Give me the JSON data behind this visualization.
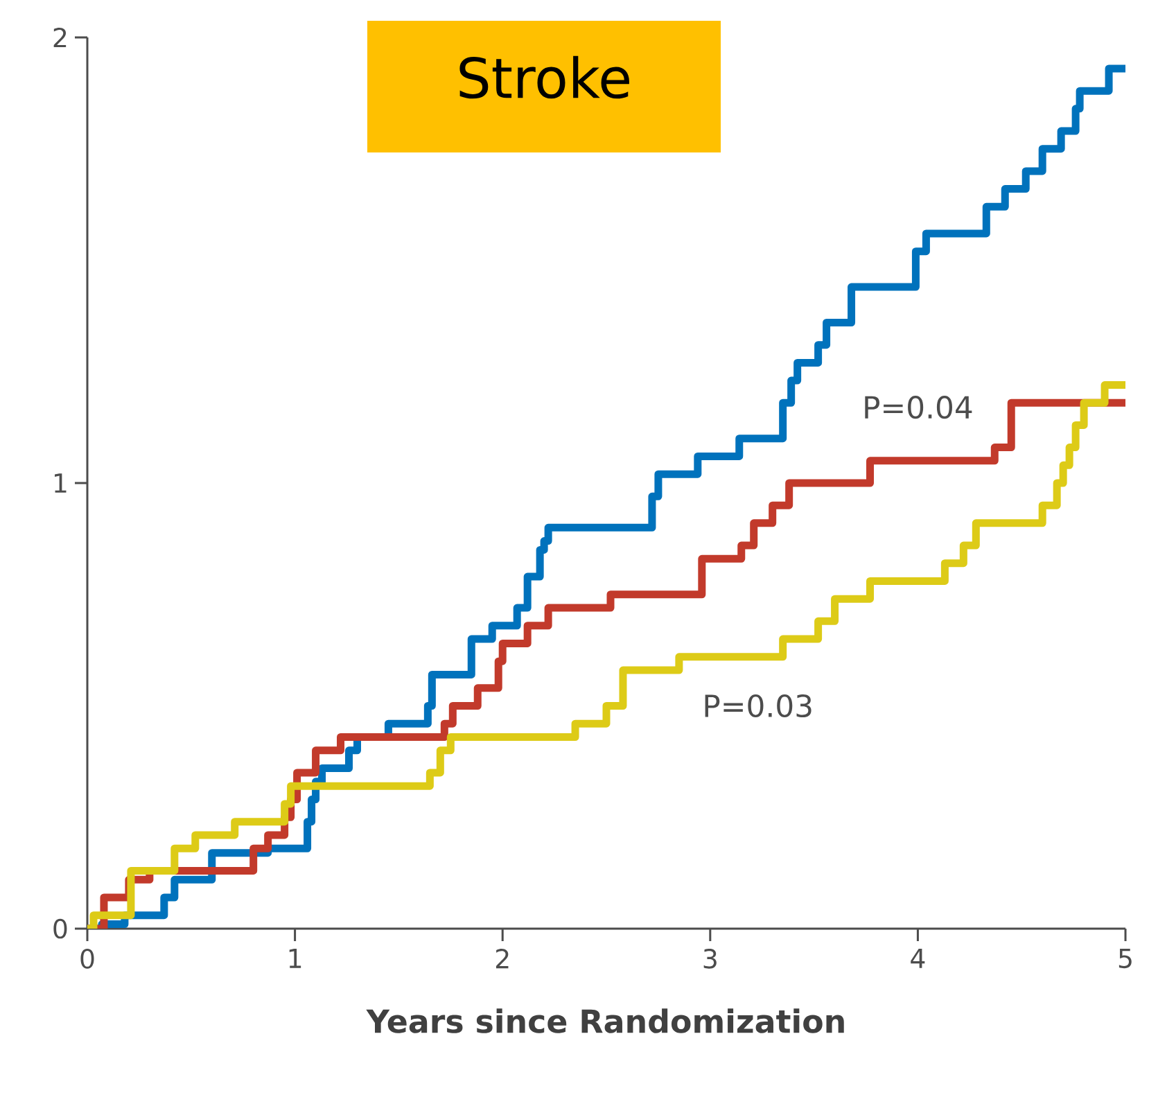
{
  "chart_data": {
    "type": "step",
    "title": "Stroke",
    "xlabel": "Years since Randomization",
    "xlim": [
      0,
      5
    ],
    "ylim": [
      0,
      2
    ],
    "xticks": [
      0,
      1,
      2,
      3,
      4,
      5
    ],
    "yticks": [
      0,
      1,
      2
    ],
    "line_style": "solid",
    "marker": "none",
    "series": [
      {
        "color": "#0072bc",
        "x": [
          0,
          0.07,
          0.18,
          0.37,
          0.42,
          0.6,
          0.87,
          1.06,
          1.08,
          1.1,
          1.13,
          1.26,
          1.3,
          1.45,
          1.64,
          1.66,
          1.85,
          1.95,
          2.07,
          2.12,
          2.18,
          2.2,
          2.22,
          2.72,
          2.75,
          2.94,
          3.14,
          3.35,
          3.39,
          3.42,
          3.52,
          3.56,
          3.68,
          3.99,
          4.04,
          4.33,
          4.42,
          4.52,
          4.6,
          4.69,
          4.76,
          4.78,
          4.92,
          5.0
        ],
        "values": [
          0,
          0.01,
          0.03,
          0.07,
          0.11,
          0.17,
          0.18,
          0.24,
          0.29,
          0.33,
          0.36,
          0.4,
          0.43,
          0.46,
          0.5,
          0.57,
          0.65,
          0.68,
          0.72,
          0.79,
          0.85,
          0.87,
          0.9,
          0.97,
          1.02,
          1.06,
          1.1,
          1.18,
          1.23,
          1.27,
          1.31,
          1.36,
          1.44,
          1.52,
          1.56,
          1.62,
          1.66,
          1.7,
          1.75,
          1.79,
          1.84,
          1.88,
          1.93,
          1.93
        ]
      },
      {
        "color": "#c23a2b",
        "x": [
          0,
          0.08,
          0.2,
          0.3,
          0.8,
          0.87,
          0.95,
          0.98,
          1.01,
          1.1,
          1.22,
          1.72,
          1.76,
          1.88,
          1.98,
          2.0,
          2.12,
          2.22,
          2.52,
          2.96,
          3.15,
          3.21,
          3.3,
          3.38,
          3.77,
          4.37,
          4.45,
          5.0
        ],
        "values": [
          0,
          0.07,
          0.11,
          0.13,
          0.18,
          0.21,
          0.25,
          0.29,
          0.35,
          0.4,
          0.43,
          0.46,
          0.5,
          0.54,
          0.6,
          0.64,
          0.68,
          0.72,
          0.75,
          0.83,
          0.86,
          0.91,
          0.95,
          1.0,
          1.05,
          1.08,
          1.18,
          1.18
        ]
      },
      {
        "color": "#ddcb17",
        "x": [
          0,
          0.03,
          0.21,
          0.42,
          0.52,
          0.71,
          0.95,
          0.98,
          1.65,
          1.7,
          1.75,
          2.35,
          2.5,
          2.58,
          2.85,
          3.35,
          3.52,
          3.6,
          3.77,
          4.13,
          4.22,
          4.28,
          4.6,
          4.67,
          4.7,
          4.73,
          4.76,
          4.8,
          4.9,
          5.0
        ],
        "values": [
          0,
          0.03,
          0.13,
          0.18,
          0.21,
          0.24,
          0.28,
          0.32,
          0.35,
          0.4,
          0.43,
          0.46,
          0.5,
          0.58,
          0.61,
          0.65,
          0.69,
          0.74,
          0.78,
          0.82,
          0.86,
          0.91,
          0.95,
          1.0,
          1.04,
          1.08,
          1.13,
          1.18,
          1.22,
          1.22
        ]
      }
    ],
    "annotations": [
      "P=0.04",
      "P=0.03"
    ]
  }
}
